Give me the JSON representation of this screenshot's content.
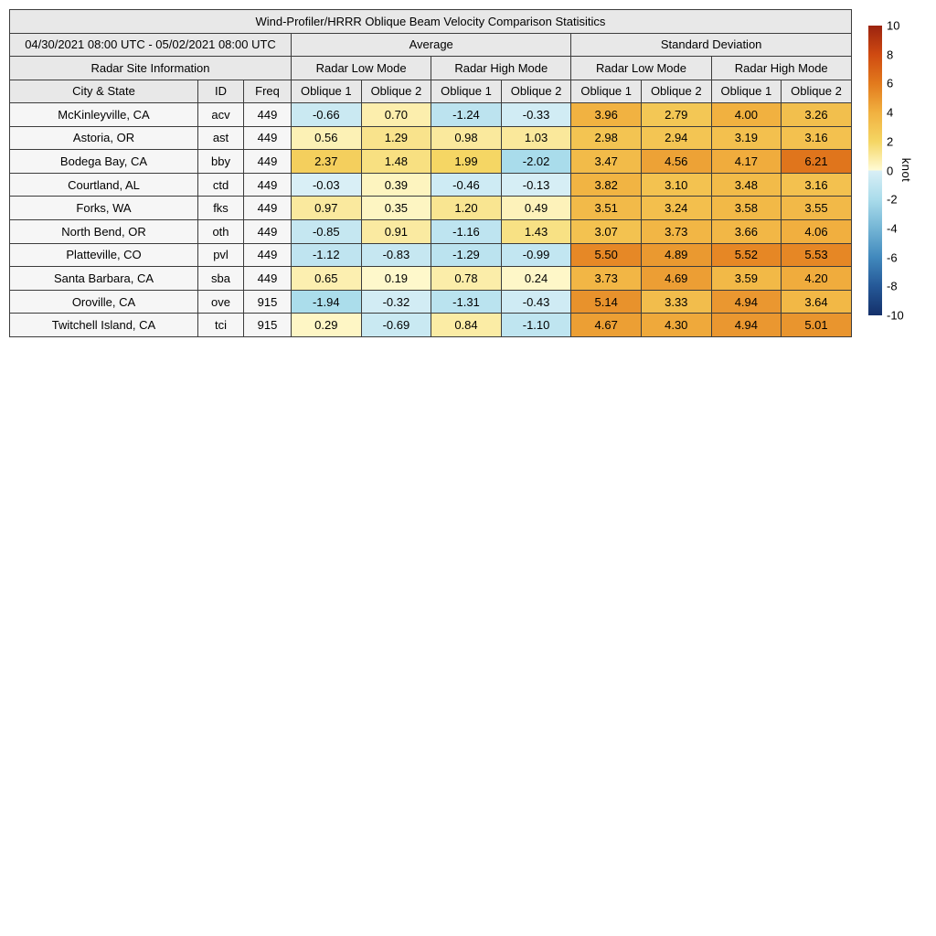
{
  "chart_data": {
    "type": "table",
    "title": "Wind-Profiler/HRRR Oblique Beam Velocity Comparison Statisitics",
    "date_range": "04/30/2021 08:00 UTC - 05/02/2021 08:00 UTC",
    "group_headers": [
      "Average",
      "Standard Deviation"
    ],
    "site_info_header": "Radar Site Information",
    "mode_headers": [
      "Radar Low Mode",
      "Radar High Mode",
      "Radar Low Mode",
      "Radar High Mode"
    ],
    "column_headers": [
      "City & State",
      "ID",
      "Freq"
    ],
    "oblique_headers": [
      "Oblique 1",
      "Oblique 2",
      "Oblique 1",
      "Oblique 2",
      "Oblique 1",
      "Oblique 2",
      "Oblique 1",
      "Oblique 2"
    ],
    "rows": [
      {
        "city": "McKinleyville, CA",
        "id": "acv",
        "freq": "449",
        "values": [
          -0.66,
          0.7,
          -1.24,
          -0.33,
          3.96,
          2.79,
          4.0,
          3.26
        ]
      },
      {
        "city": "Astoria, OR",
        "id": "ast",
        "freq": "449",
        "values": [
          0.56,
          1.29,
          0.98,
          1.03,
          2.98,
          2.94,
          3.19,
          3.16
        ]
      },
      {
        "city": "Bodega Bay, CA",
        "id": "bby",
        "freq": "449",
        "values": [
          2.37,
          1.48,
          1.99,
          -2.02,
          3.47,
          4.56,
          4.17,
          6.21
        ]
      },
      {
        "city": "Courtland, AL",
        "id": "ctd",
        "freq": "449",
        "values": [
          -0.03,
          0.39,
          -0.46,
          -0.13,
          3.82,
          3.1,
          3.48,
          3.16
        ]
      },
      {
        "city": "Forks, WA",
        "id": "fks",
        "freq": "449",
        "values": [
          0.97,
          0.35,
          1.2,
          0.49,
          3.51,
          3.24,
          3.58,
          3.55
        ]
      },
      {
        "city": "North Bend, OR",
        "id": "oth",
        "freq": "449",
        "values": [
          -0.85,
          0.91,
          -1.16,
          1.43,
          3.07,
          3.73,
          3.66,
          4.06
        ]
      },
      {
        "city": "Platteville, CO",
        "id": "pvl",
        "freq": "449",
        "values": [
          -1.12,
          -0.83,
          -1.29,
          -0.99,
          5.5,
          4.89,
          5.52,
          5.53
        ]
      },
      {
        "city": "Santa Barbara, CA",
        "id": "sba",
        "freq": "449",
        "values": [
          0.65,
          0.19,
          0.78,
          0.24,
          3.73,
          4.69,
          3.59,
          4.2
        ]
      },
      {
        "city": "Oroville, CA",
        "id": "ove",
        "freq": "915",
        "values": [
          -1.94,
          -0.32,
          -1.31,
          -0.43,
          5.14,
          3.33,
          4.94,
          3.64
        ]
      },
      {
        "city": "Twitchell Island, CA",
        "id": "tci",
        "freq": "915",
        "values": [
          0.29,
          -0.69,
          0.84,
          -1.1,
          4.67,
          4.3,
          4.94,
          5.01
        ]
      }
    ],
    "colorbar": {
      "label": "knot",
      "min": -10,
      "max": 10,
      "ticks": [
        "10",
        "8",
        "6",
        "4",
        "2",
        "0",
        "-2",
        "-4",
        "-6",
        "-8",
        "-10"
      ],
      "tick_values": [
        10,
        8,
        6,
        4,
        2,
        0,
        -2,
        -4,
        -6,
        -8,
        -10
      ],
      "stops": [
        [
          -10,
          "#14306a"
        ],
        [
          -8,
          "#255897"
        ],
        [
          -6,
          "#4189bd"
        ],
        [
          -4,
          "#74b5d5"
        ],
        [
          -2,
          "#aadceb"
        ],
        [
          -0.01,
          "#d9eff6"
        ],
        [
          0.01,
          "#fffbd5"
        ],
        [
          2,
          "#f5d663"
        ],
        [
          4,
          "#f1b140"
        ],
        [
          6,
          "#e27a1d"
        ],
        [
          8,
          "#cf4a11"
        ],
        [
          10,
          "#9b2310"
        ]
      ]
    },
    "colors": {
      "header_bg": "#e8e8e8",
      "site_cell_bg": "#f6f6f6",
      "grid_line": "#3c3c3c"
    }
  }
}
